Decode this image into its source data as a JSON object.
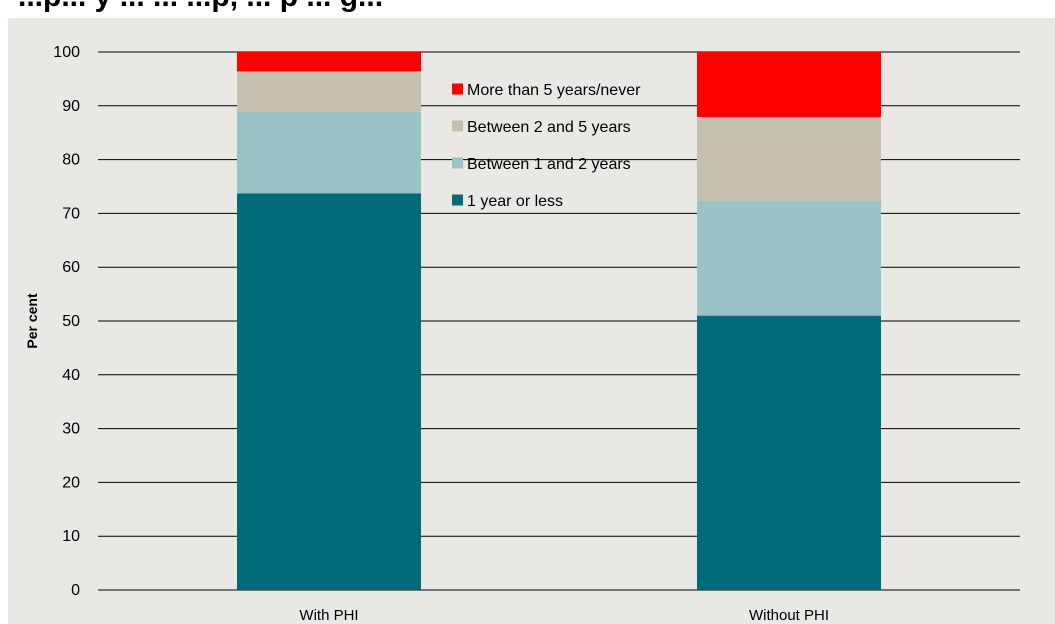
{
  "chart_data": {
    "type": "bar",
    "stacked": true,
    "title": "...p... y ... ... ...p, ... p ... g...",
    "ylabel": "Per cent",
    "xlabel": "",
    "ylim": [
      0,
      100
    ],
    "yticks": [
      0,
      10,
      20,
      30,
      40,
      50,
      60,
      70,
      80,
      90,
      100
    ],
    "categories": [
      "With PHI",
      "Without PHI"
    ],
    "series": [
      {
        "name": "1 year or less",
        "color": "#006a78",
        "values": [
          73.7,
          51
        ]
      },
      {
        "name": "Between 1 and 2 years",
        "color": "#9bc3c5",
        "values": [
          15.2,
          21.3
        ]
      },
      {
        "name": "Between 2 and 5 years",
        "color": "#c5bfad",
        "values": [
          7.5,
          15.6
        ]
      },
      {
        "name": "More than 5 years/never",
        "color": "#ff0000",
        "values": [
          3.6,
          12.1
        ]
      }
    ],
    "legend_order": [
      3,
      2,
      1,
      0
    ],
    "legend_position": "top-center",
    "grid": {
      "horizontal": true,
      "vertical": false
    }
  }
}
